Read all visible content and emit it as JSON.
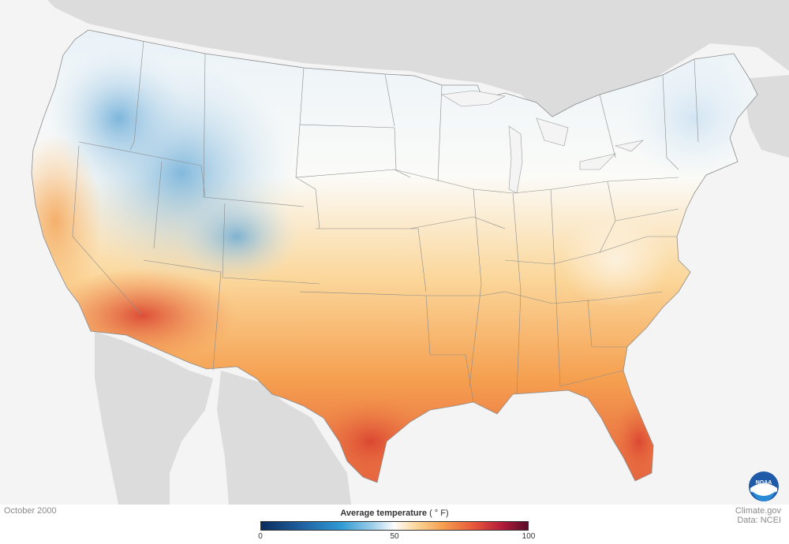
{
  "map": {
    "type": "choropleth",
    "region": "Contiguous United States",
    "colors": {
      "background": "#f4f4f4",
      "land_outside": "#dcdcdc",
      "state_border": "#8c8c8c",
      "cold": "#4a90c8",
      "neutral": "#fdfdfb",
      "warm": "#f6a553",
      "hot": "#d94a32"
    },
    "regional_pattern": [
      {
        "area": "Rocky Mountains / Great Basin",
        "tone": "cool blue"
      },
      {
        "area": "Northern Plains / Upper Midwest",
        "tone": "near-white"
      },
      {
        "area": "Great Lakes / Midwest",
        "tone": "light orange"
      },
      {
        "area": "Southeast / Texas / Florida",
        "tone": "orange-red"
      },
      {
        "area": "Desert Southwest",
        "tone": "red"
      }
    ]
  },
  "date_label": "October 2000",
  "legend": {
    "title": "Average temperature",
    "unit": "( ° F)",
    "min": 0,
    "max": 100,
    "ticks": [
      "0",
      "50",
      "100"
    ],
    "tick_values": [
      0,
      50,
      100
    ],
    "colors": [
      "#0a2c5e",
      "#2f9ad3",
      "#fdfdfb",
      "#f5a050",
      "#e8553a",
      "#5a0b2c"
    ]
  },
  "credits": {
    "line1": "Climate.gov",
    "line2": "Data: NCEI"
  },
  "logo": {
    "text": "NOAA",
    "icon": "noaa-logo-icon"
  }
}
